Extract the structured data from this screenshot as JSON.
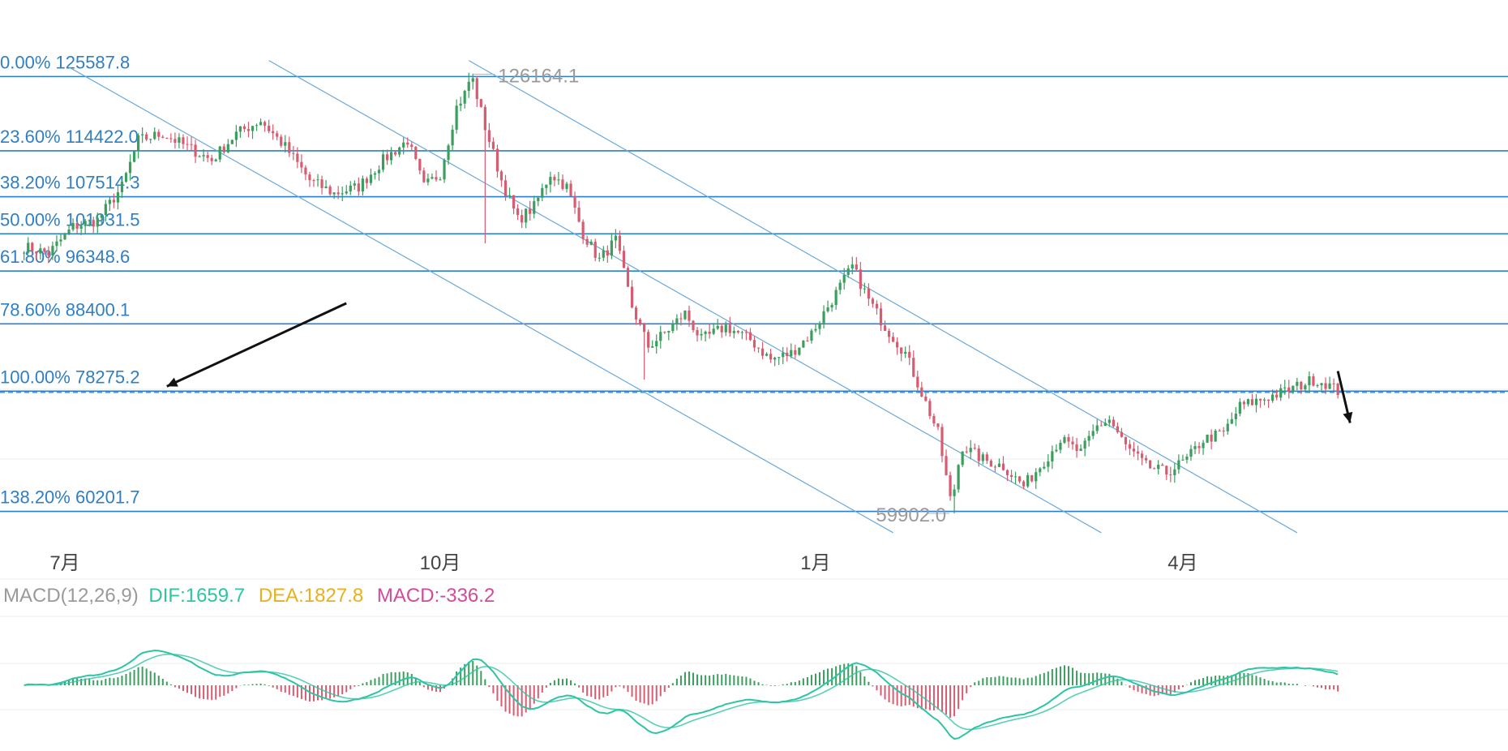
{
  "colors": {
    "up": "#3a9e5c",
    "down": "#d85b70",
    "fib": "#2a7fcc",
    "channel": "#6aa9db",
    "dif": "#2ec4a4",
    "dea": "#e8b020",
    "macd": "#d04b9b",
    "grid": "#ececec",
    "params": "#9a9a9a"
  },
  "chart_data": {
    "type": "candlestick",
    "y_range": [
      56000,
      131000
    ],
    "x_range": [
      -5.9,
      363.7
    ],
    "fib_levels": [
      {
        "pct": "0.00%",
        "value": 125587.8,
        "label": "0.00% 125587.8"
      },
      {
        "pct": "23.60%",
        "value": 114422.0,
        "label": "23.60% 114422.0"
      },
      {
        "pct": "38.20%",
        "value": 107514.3,
        "label": "38.20% 107514.3"
      },
      {
        "pct": "50.00%",
        "value": 101931.5,
        "label": "50.00% 101931.5"
      },
      {
        "pct": "61.80%",
        "value": 96348.6,
        "label": "61.80% 96348.6"
      },
      {
        "pct": "78.60%",
        "value": 88400.1,
        "label": "78.60% 88400.1"
      },
      {
        "pct": "100.00%",
        "value": 78275.2,
        "label": "100.00% 78275.2"
      },
      {
        "pct": "138.20%",
        "value": 60201.7,
        "label": "138.20% 60201.7"
      }
    ],
    "x_ticks": [
      {
        "label": "7月",
        "day": 10
      },
      {
        "label": "10月",
        "day": 102
      },
      {
        "label": "1月",
        "day": 194
      },
      {
        "label": "4月",
        "day": 284
      },
      {
        "label": "7月",
        "day": 375
      }
    ],
    "high_label": {
      "text": "126164.1",
      "day": 109,
      "value": 126164.1
    },
    "low_label": {
      "text": "59902.0",
      "day": 228,
      "value": 59902.0
    },
    "current_price_line": 78275.2,
    "channels": [
      {
        "d1": 11,
        "v1": 127000,
        "d2": 213,
        "v2": 57000
      },
      {
        "d1": 60,
        "v1": 128000,
        "d2": 264,
        "v2": 57000
      },
      {
        "d1": 109,
        "v1": 128000,
        "d2": 312,
        "v2": 57000
      }
    ],
    "arrows": [
      {
        "d1": 79,
        "v1": 91500,
        "d2": 35,
        "v2": 79000
      },
      {
        "d1": 322,
        "v1": 81300,
        "d2": 325,
        "v2": 73500
      }
    ],
    "path_points": [
      [
        0,
        100000
      ],
      [
        6,
        99000
      ],
      [
        12,
        103000
      ],
      [
        18,
        104000
      ],
      [
        24,
        109000
      ],
      [
        28,
        116000
      ],
      [
        34,
        117000
      ],
      [
        40,
        115000
      ],
      [
        46,
        113000
      ],
      [
        52,
        117000
      ],
      [
        58,
        119000
      ],
      [
        64,
        115000
      ],
      [
        70,
        110000
      ],
      [
        76,
        108000
      ],
      [
        82,
        109000
      ],
      [
        88,
        113000
      ],
      [
        94,
        116000
      ],
      [
        98,
        109000
      ],
      [
        102,
        111000
      ],
      [
        106,
        121000
      ],
      [
        110,
        125000
      ],
      [
        113,
        118000
      ],
      [
        117,
        110000
      ],
      [
        121,
        104000
      ],
      [
        125,
        106000
      ],
      [
        129,
        111000
      ],
      [
        133,
        109000
      ],
      [
        137,
        102000
      ],
      [
        141,
        98000
      ],
      [
        145,
        101000
      ],
      [
        149,
        91000
      ],
      [
        153,
        85000
      ],
      [
        157,
        87000
      ],
      [
        162,
        90000
      ],
      [
        166,
        86000
      ],
      [
        172,
        88000
      ],
      [
        178,
        86000
      ],
      [
        183,
        83000
      ],
      [
        188,
        84000
      ],
      [
        193,
        87000
      ],
      [
        199,
        93000
      ],
      [
        203,
        97000
      ],
      [
        207,
        92000
      ],
      [
        211,
        88000
      ],
      [
        216,
        84000
      ],
      [
        220,
        78000
      ],
      [
        224,
        72000
      ],
      [
        227,
        62000
      ],
      [
        230,
        70000
      ],
      [
        235,
        68000
      ],
      [
        240,
        67000
      ],
      [
        245,
        64000
      ],
      [
        249,
        67000
      ],
      [
        254,
        71000
      ],
      [
        259,
        69000
      ],
      [
        263,
        73000
      ],
      [
        266,
        74000
      ],
      [
        270,
        70000
      ],
      [
        275,
        67000
      ],
      [
        280,
        66000
      ],
      [
        285,
        68000
      ],
      [
        289,
        71000
      ],
      [
        294,
        72000
      ],
      [
        298,
        76000
      ],
      [
        303,
        77000
      ],
      [
        308,
        78000
      ],
      [
        312,
        79000
      ],
      [
        316,
        80000
      ],
      [
        319,
        79500
      ],
      [
        322,
        78300
      ]
    ],
    "macd": {
      "params": "MACD(12,26,9)",
      "dif_label": "DIF:1659.7",
      "dea_label": "DEA:1827.8",
      "macd_label": "MACD:-336.2",
      "dif": 1659.7,
      "dea": 1827.8,
      "macd": -336.2
    }
  }
}
